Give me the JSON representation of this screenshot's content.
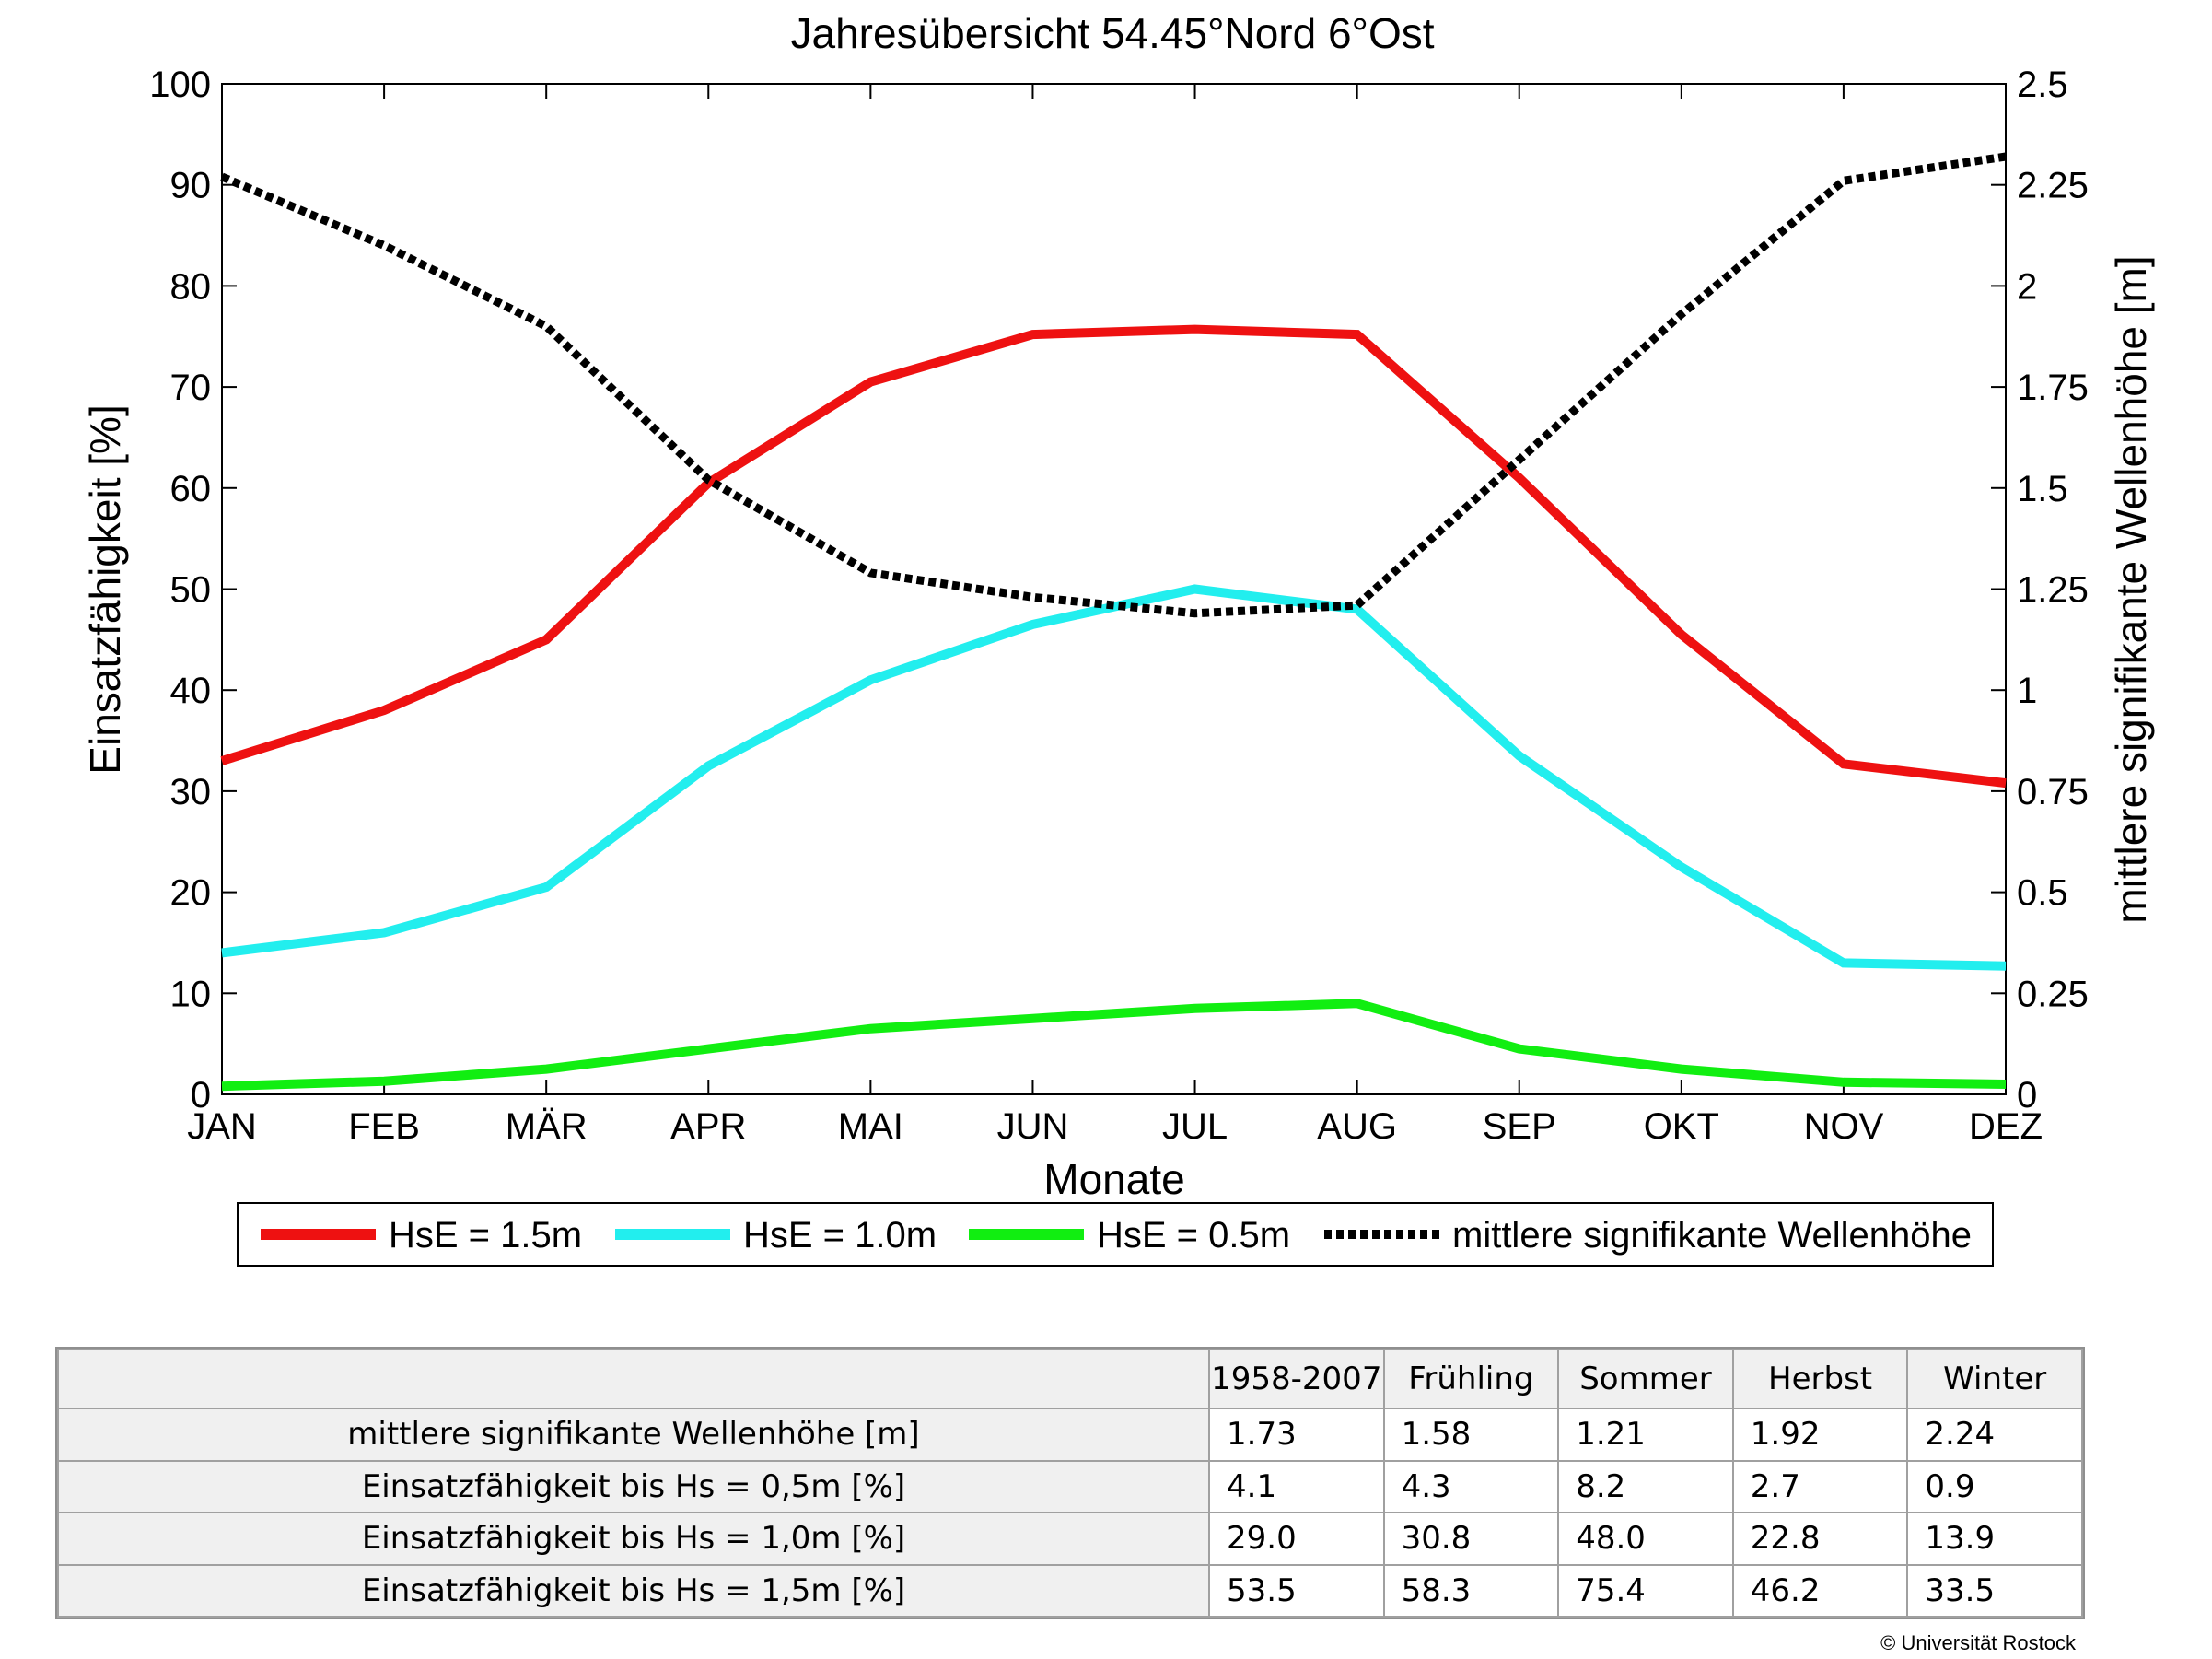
{
  "chart_data": {
    "type": "line",
    "title": "Jahresübersicht  54.45°Nord  6°Ost",
    "xlabel": "Monate",
    "ylabel_left": "Einsatzfähigkeit [%]",
    "ylabel_right": "mittlere signifikante Wellenhöhe [m]",
    "categories": [
      "JAN",
      "FEB",
      "MÄR",
      "APR",
      "MAI",
      "JUN",
      "JUL",
      "AUG",
      "SEP",
      "OKT",
      "NOV",
      "DEZ"
    ],
    "ylim_left": [
      0,
      100
    ],
    "ylim_right": [
      0,
      2.5
    ],
    "yticks_left": [
      "0",
      "10",
      "20",
      "30",
      "40",
      "50",
      "60",
      "70",
      "80",
      "90",
      "100"
    ],
    "yticks_right": [
      "0",
      "0.25",
      "0.5",
      "0.75",
      "1",
      "1.25",
      "1.5",
      "1.75",
      "2",
      "2.25",
      "2.5"
    ],
    "grid": false,
    "legend_position": "below",
    "series": [
      {
        "name": "HsE = 1.5m",
        "axis": "left",
        "color": "#ee1111",
        "style": "solid",
        "values": [
          33,
          38,
          45,
          60.5,
          70.5,
          75.2,
          75.7,
          75.2,
          61,
          45.5,
          32.7,
          30.8
        ]
      },
      {
        "name": "HsE = 1.0m",
        "axis": "left",
        "color": "#22eeee",
        "style": "solid",
        "values": [
          14,
          16,
          20.5,
          32.5,
          41,
          46.5,
          50,
          48,
          33.5,
          22.5,
          13,
          12.7
        ]
      },
      {
        "name": "HsE = 0.5m",
        "axis": "left",
        "color": "#11ee11",
        "style": "solid",
        "values": [
          0.8,
          1.3,
          2.5,
          4.5,
          6.5,
          7.5,
          8.5,
          9,
          4.5,
          2.5,
          1.2,
          1
        ]
      },
      {
        "name": "mittlere signifikante Wellenhöhe",
        "axis": "right",
        "color": "#000000",
        "style": "dotted",
        "values": [
          2.27,
          2.1,
          1.9,
          1.52,
          1.29,
          1.23,
          1.19,
          1.21,
          1.57,
          1.93,
          2.26,
          2.32
        ]
      }
    ]
  },
  "table": {
    "headers": [
      "",
      "1958-2007",
      "Frühling",
      "Sommer",
      "Herbst",
      "Winter"
    ],
    "rows": [
      {
        "label": "mittlere signifikante Wellenhöhe [m]",
        "values": [
          "1.73",
          "1.58",
          "1.21",
          "1.92",
          "2.24"
        ]
      },
      {
        "label": "Einsatzfähigkeit bis Hs = 0,5m [%]",
        "values": [
          "4.1",
          "4.3",
          "8.2",
          "2.7",
          "0.9"
        ]
      },
      {
        "label": "Einsatzfähigkeit bis Hs = 1,0m [%]",
        "values": [
          "29.0",
          "30.8",
          "48.0",
          "22.8",
          "13.9"
        ]
      },
      {
        "label": "Einsatzfähigkeit bis Hs = 1,5m [%]",
        "values": [
          "53.5",
          "58.3",
          "75.4",
          "46.2",
          "33.5"
        ]
      }
    ]
  },
  "copyright": "© Universität Rostock"
}
